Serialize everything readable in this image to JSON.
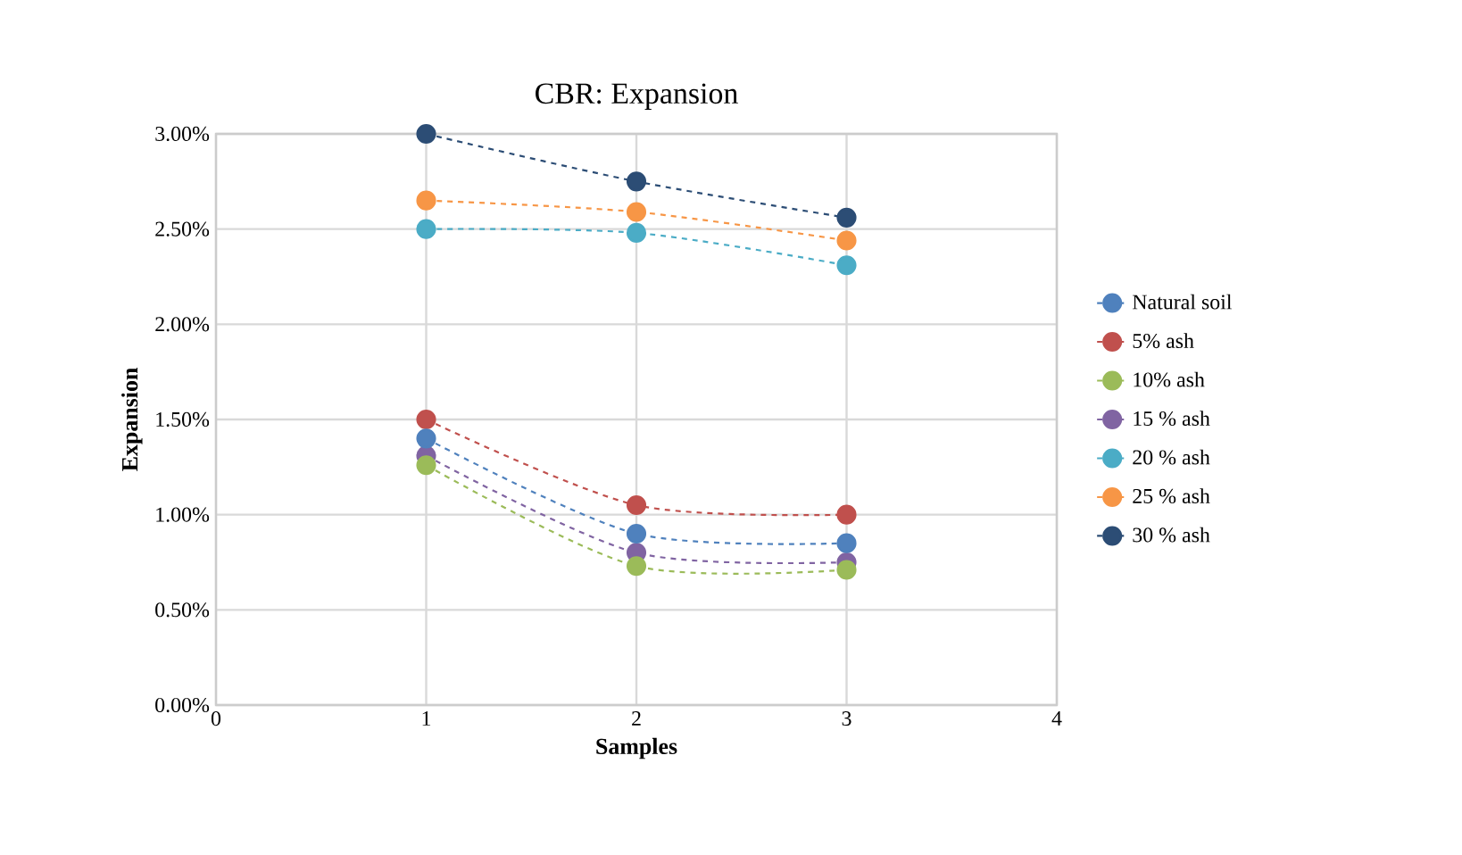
{
  "chart_data": {
    "type": "line",
    "title": "CBR: Expansion",
    "xlabel": "Samples",
    "ylabel": "Expansion",
    "x": [
      1,
      2,
      3
    ],
    "xlim": [
      0,
      4
    ],
    "xticks": [
      0,
      1,
      2,
      3,
      4
    ],
    "ylim": [
      0,
      3
    ],
    "yticks": [
      {
        "value": 0,
        "label": "0.00%"
      },
      {
        "value": 0.5,
        "label": "0.50%"
      },
      {
        "value": 1,
        "label": "1.00%"
      },
      {
        "value": 1.5,
        "label": "1.50%"
      },
      {
        "value": 2,
        "label": "2.00%"
      },
      {
        "value": 2.5,
        "label": "2.50%"
      },
      {
        "value": 3,
        "label": "3.00%"
      }
    ],
    "series": [
      {
        "name": "Natural soil",
        "color": "#4f81bd",
        "values": [
          1.4,
          0.9,
          0.85
        ]
      },
      {
        "name": "5% ash",
        "color": "#c0504d",
        "values": [
          1.5,
          1.05,
          1.0
        ]
      },
      {
        "name": "10% ash",
        "color": "#9bbb59",
        "values": [
          1.26,
          0.73,
          0.71
        ]
      },
      {
        "name": "15 % ash",
        "color": "#8064a2",
        "values": [
          1.31,
          0.8,
          0.75
        ]
      },
      {
        "name": "20 % ash",
        "color": "#4bacc6",
        "values": [
          2.5,
          2.48,
          2.31
        ]
      },
      {
        "name": "25 % ash",
        "color": "#f79646",
        "values": [
          2.65,
          2.59,
          2.44
        ]
      },
      {
        "name": "30 % ash",
        "color": "#2c4d75",
        "values": [
          3.0,
          2.75,
          2.56
        ]
      }
    ],
    "grid": true,
    "legend": "right",
    "marker": "circle",
    "line_style": "dashed"
  }
}
